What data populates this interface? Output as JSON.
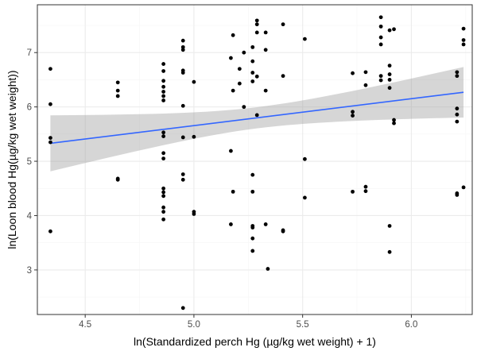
{
  "chart_data": {
    "type": "scatter",
    "title": "",
    "xlabel": "ln(Standardized perch Hg (µg/kg wet weight) + 1)",
    "ylabel": "ln(Loon blood Hg(µg/kg wet weight))",
    "xlim": [
      4.28,
      6.28
    ],
    "ylim": [
      2.18,
      7.88
    ],
    "x_ticks": [
      4.5,
      5.0,
      5.5,
      6.0
    ],
    "x_tick_labels": [
      "4.5",
      "5.0",
      "5.5",
      "6.0"
    ],
    "y_ticks": [
      3,
      4,
      5,
      6,
      7
    ],
    "y_tick_labels": [
      "3",
      "4",
      "5",
      "6",
      "7"
    ],
    "grid": true,
    "legend": "none",
    "series": [
      {
        "points": [
          {
            "x": 4.34,
            "y": 6.7
          },
          {
            "x": 4.34,
            "y": 6.05
          },
          {
            "x": 4.34,
            "y": 5.43
          },
          {
            "x": 4.34,
            "y": 5.35
          },
          {
            "x": 4.34,
            "y": 3.71
          },
          {
            "x": 4.65,
            "y": 6.45
          },
          {
            "x": 4.65,
            "y": 6.3
          },
          {
            "x": 4.65,
            "y": 6.2
          },
          {
            "x": 4.65,
            "y": 4.68
          },
          {
            "x": 4.65,
            "y": 4.66
          },
          {
            "x": 4.86,
            "y": 6.79
          },
          {
            "x": 4.86,
            "y": 6.66
          },
          {
            "x": 4.86,
            "y": 6.48
          },
          {
            "x": 4.86,
            "y": 6.37
          },
          {
            "x": 4.86,
            "y": 6.28
          },
          {
            "x": 4.86,
            "y": 6.2
          },
          {
            "x": 4.86,
            "y": 6.12
          },
          {
            "x": 4.86,
            "y": 5.53
          },
          {
            "x": 4.86,
            "y": 5.46
          },
          {
            "x": 4.86,
            "y": 5.15
          },
          {
            "x": 4.86,
            "y": 5.05
          },
          {
            "x": 4.86,
            "y": 4.5
          },
          {
            "x": 4.86,
            "y": 4.43
          },
          {
            "x": 4.86,
            "y": 4.36
          },
          {
            "x": 4.86,
            "y": 4.15
          },
          {
            "x": 4.86,
            "y": 4.07
          },
          {
            "x": 4.86,
            "y": 3.93
          },
          {
            "x": 4.95,
            "y": 7.22
          },
          {
            "x": 4.95,
            "y": 7.1
          },
          {
            "x": 4.95,
            "y": 7.05
          },
          {
            "x": 4.95,
            "y": 6.67
          },
          {
            "x": 4.95,
            "y": 6.63
          },
          {
            "x": 4.95,
            "y": 6.02
          },
          {
            "x": 4.95,
            "y": 5.44
          },
          {
            "x": 4.95,
            "y": 4.76
          },
          {
            "x": 4.95,
            "y": 4.66
          },
          {
            "x": 4.95,
            "y": 2.3
          },
          {
            "x": 5.0,
            "y": 6.46
          },
          {
            "x": 5.0,
            "y": 5.45
          },
          {
            "x": 5.0,
            "y": 4.07
          },
          {
            "x": 5.0,
            "y": 4.03
          },
          {
            "x": 5.17,
            "y": 6.9
          },
          {
            "x": 5.17,
            "y": 5.19
          },
          {
            "x": 5.17,
            "y": 3.84
          },
          {
            "x": 5.18,
            "y": 7.32
          },
          {
            "x": 5.18,
            "y": 6.3
          },
          {
            "x": 5.18,
            "y": 4.44
          },
          {
            "x": 5.21,
            "y": 6.43
          },
          {
            "x": 5.21,
            "y": 6.7
          },
          {
            "x": 5.23,
            "y": 7.0
          },
          {
            "x": 5.23,
            "y": 6.0
          },
          {
            "x": 5.27,
            "y": 7.1
          },
          {
            "x": 5.27,
            "y": 6.84
          },
          {
            "x": 5.27,
            "y": 6.63
          },
          {
            "x": 5.27,
            "y": 6.47
          },
          {
            "x": 5.27,
            "y": 4.75
          },
          {
            "x": 5.27,
            "y": 4.44
          },
          {
            "x": 5.27,
            "y": 3.81
          },
          {
            "x": 5.27,
            "y": 3.78
          },
          {
            "x": 5.27,
            "y": 3.58
          },
          {
            "x": 5.27,
            "y": 3.35
          },
          {
            "x": 5.29,
            "y": 7.59
          },
          {
            "x": 5.29,
            "y": 7.52
          },
          {
            "x": 5.29,
            "y": 7.37
          },
          {
            "x": 5.29,
            "y": 6.56
          },
          {
            "x": 5.29,
            "y": 5.85
          },
          {
            "x": 5.33,
            "y": 7.37
          },
          {
            "x": 5.33,
            "y": 7.05
          },
          {
            "x": 5.33,
            "y": 6.3
          },
          {
            "x": 5.33,
            "y": 3.84
          },
          {
            "x": 5.34,
            "y": 3.02
          },
          {
            "x": 5.41,
            "y": 7.52
          },
          {
            "x": 5.41,
            "y": 6.57
          },
          {
            "x": 5.41,
            "y": 3.73
          },
          {
            "x": 5.41,
            "y": 3.71
          },
          {
            "x": 5.51,
            "y": 7.25
          },
          {
            "x": 5.51,
            "y": 5.04
          },
          {
            "x": 5.51,
            "y": 4.33
          },
          {
            "x": 5.73,
            "y": 6.62
          },
          {
            "x": 5.73,
            "y": 5.91
          },
          {
            "x": 5.73,
            "y": 5.84
          },
          {
            "x": 5.73,
            "y": 4.44
          },
          {
            "x": 5.79,
            "y": 6.64
          },
          {
            "x": 5.79,
            "y": 6.4
          },
          {
            "x": 5.79,
            "y": 4.53
          },
          {
            "x": 5.79,
            "y": 4.45
          },
          {
            "x": 5.86,
            "y": 7.65
          },
          {
            "x": 5.86,
            "y": 7.48
          },
          {
            "x": 5.86,
            "y": 7.28
          },
          {
            "x": 5.86,
            "y": 7.15
          },
          {
            "x": 5.86,
            "y": 6.57
          },
          {
            "x": 5.86,
            "y": 6.49
          },
          {
            "x": 5.9,
            "y": 7.41
          },
          {
            "x": 5.9,
            "y": 6.76
          },
          {
            "x": 5.9,
            "y": 6.6
          },
          {
            "x": 5.9,
            "y": 6.5
          },
          {
            "x": 5.9,
            "y": 6.35
          },
          {
            "x": 5.9,
            "y": 3.81
          },
          {
            "x": 5.9,
            "y": 3.33
          },
          {
            "x": 5.92,
            "y": 7.43
          },
          {
            "x": 5.92,
            "y": 5.76
          },
          {
            "x": 5.92,
            "y": 5.7
          },
          {
            "x": 6.21,
            "y": 6.64
          },
          {
            "x": 6.21,
            "y": 6.57
          },
          {
            "x": 6.21,
            "y": 5.97
          },
          {
            "x": 6.21,
            "y": 5.86
          },
          {
            "x": 6.21,
            "y": 5.73
          },
          {
            "x": 6.21,
            "y": 4.41
          },
          {
            "x": 6.21,
            "y": 4.38
          },
          {
            "x": 6.24,
            "y": 7.44
          },
          {
            "x": 6.24,
            "y": 7.23
          },
          {
            "x": 6.24,
            "y": 7.15
          },
          {
            "x": 6.24,
            "y": 4.52
          }
        ],
        "color": "#000000"
      }
    ],
    "fit": {
      "method": "linear",
      "x": [
        4.34,
        6.24
      ],
      "y": [
        5.33,
        6.27
      ],
      "ci_lower": [
        4.81,
        5.81
      ],
      "ci_upper": [
        5.84,
        6.74
      ],
      "line_color": "#3366FF",
      "band_color": "#999999"
    },
    "panel_background": "#ffffff",
    "panel_border_color": "#333333",
    "grid_major_color": "#ebebeb",
    "grid_minor_color": "#f5f5f5"
  }
}
